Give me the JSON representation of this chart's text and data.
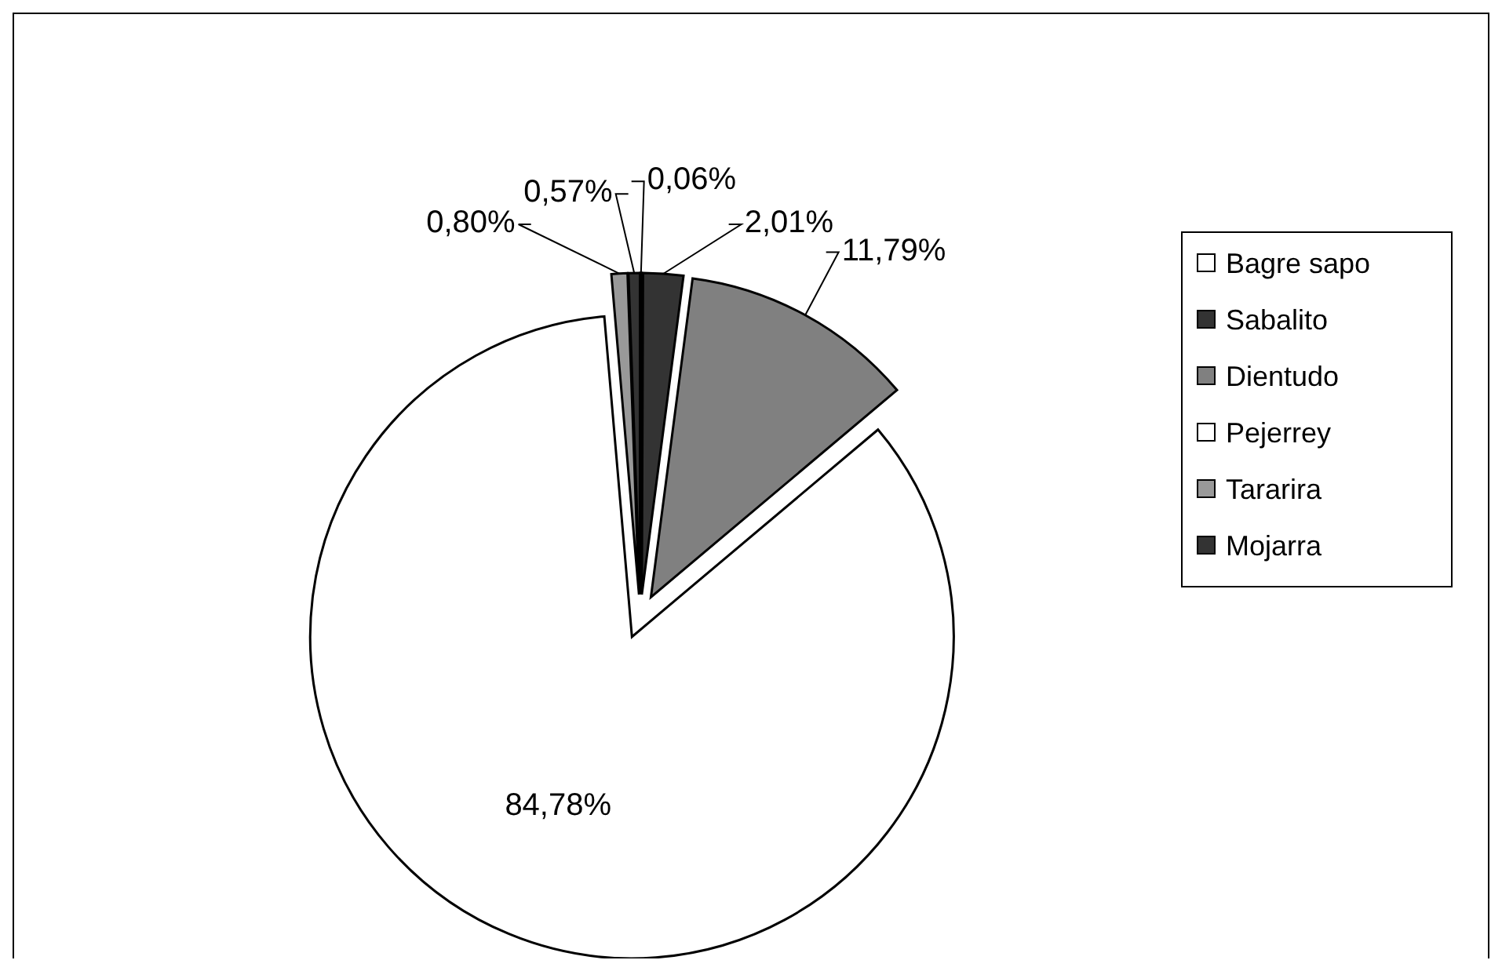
{
  "chart_data": {
    "type": "pie",
    "categories": [
      "Bagre sapo",
      "Sabalito",
      "Dientudo",
      "Pejerrey",
      "Tararira",
      "Mojarra"
    ],
    "values": [
      0.06,
      2.01,
      11.79,
      84.78,
      0.8,
      0.57
    ],
    "colors": [
      "#ffffff",
      "#333333",
      "#808080",
      "#ffffff",
      "#999999",
      "#333333"
    ],
    "value_labels": [
      "0,06%",
      "2,01%",
      "11,79%",
      "84,78%",
      "0,80%",
      "0,57%"
    ],
    "legend": "right"
  }
}
